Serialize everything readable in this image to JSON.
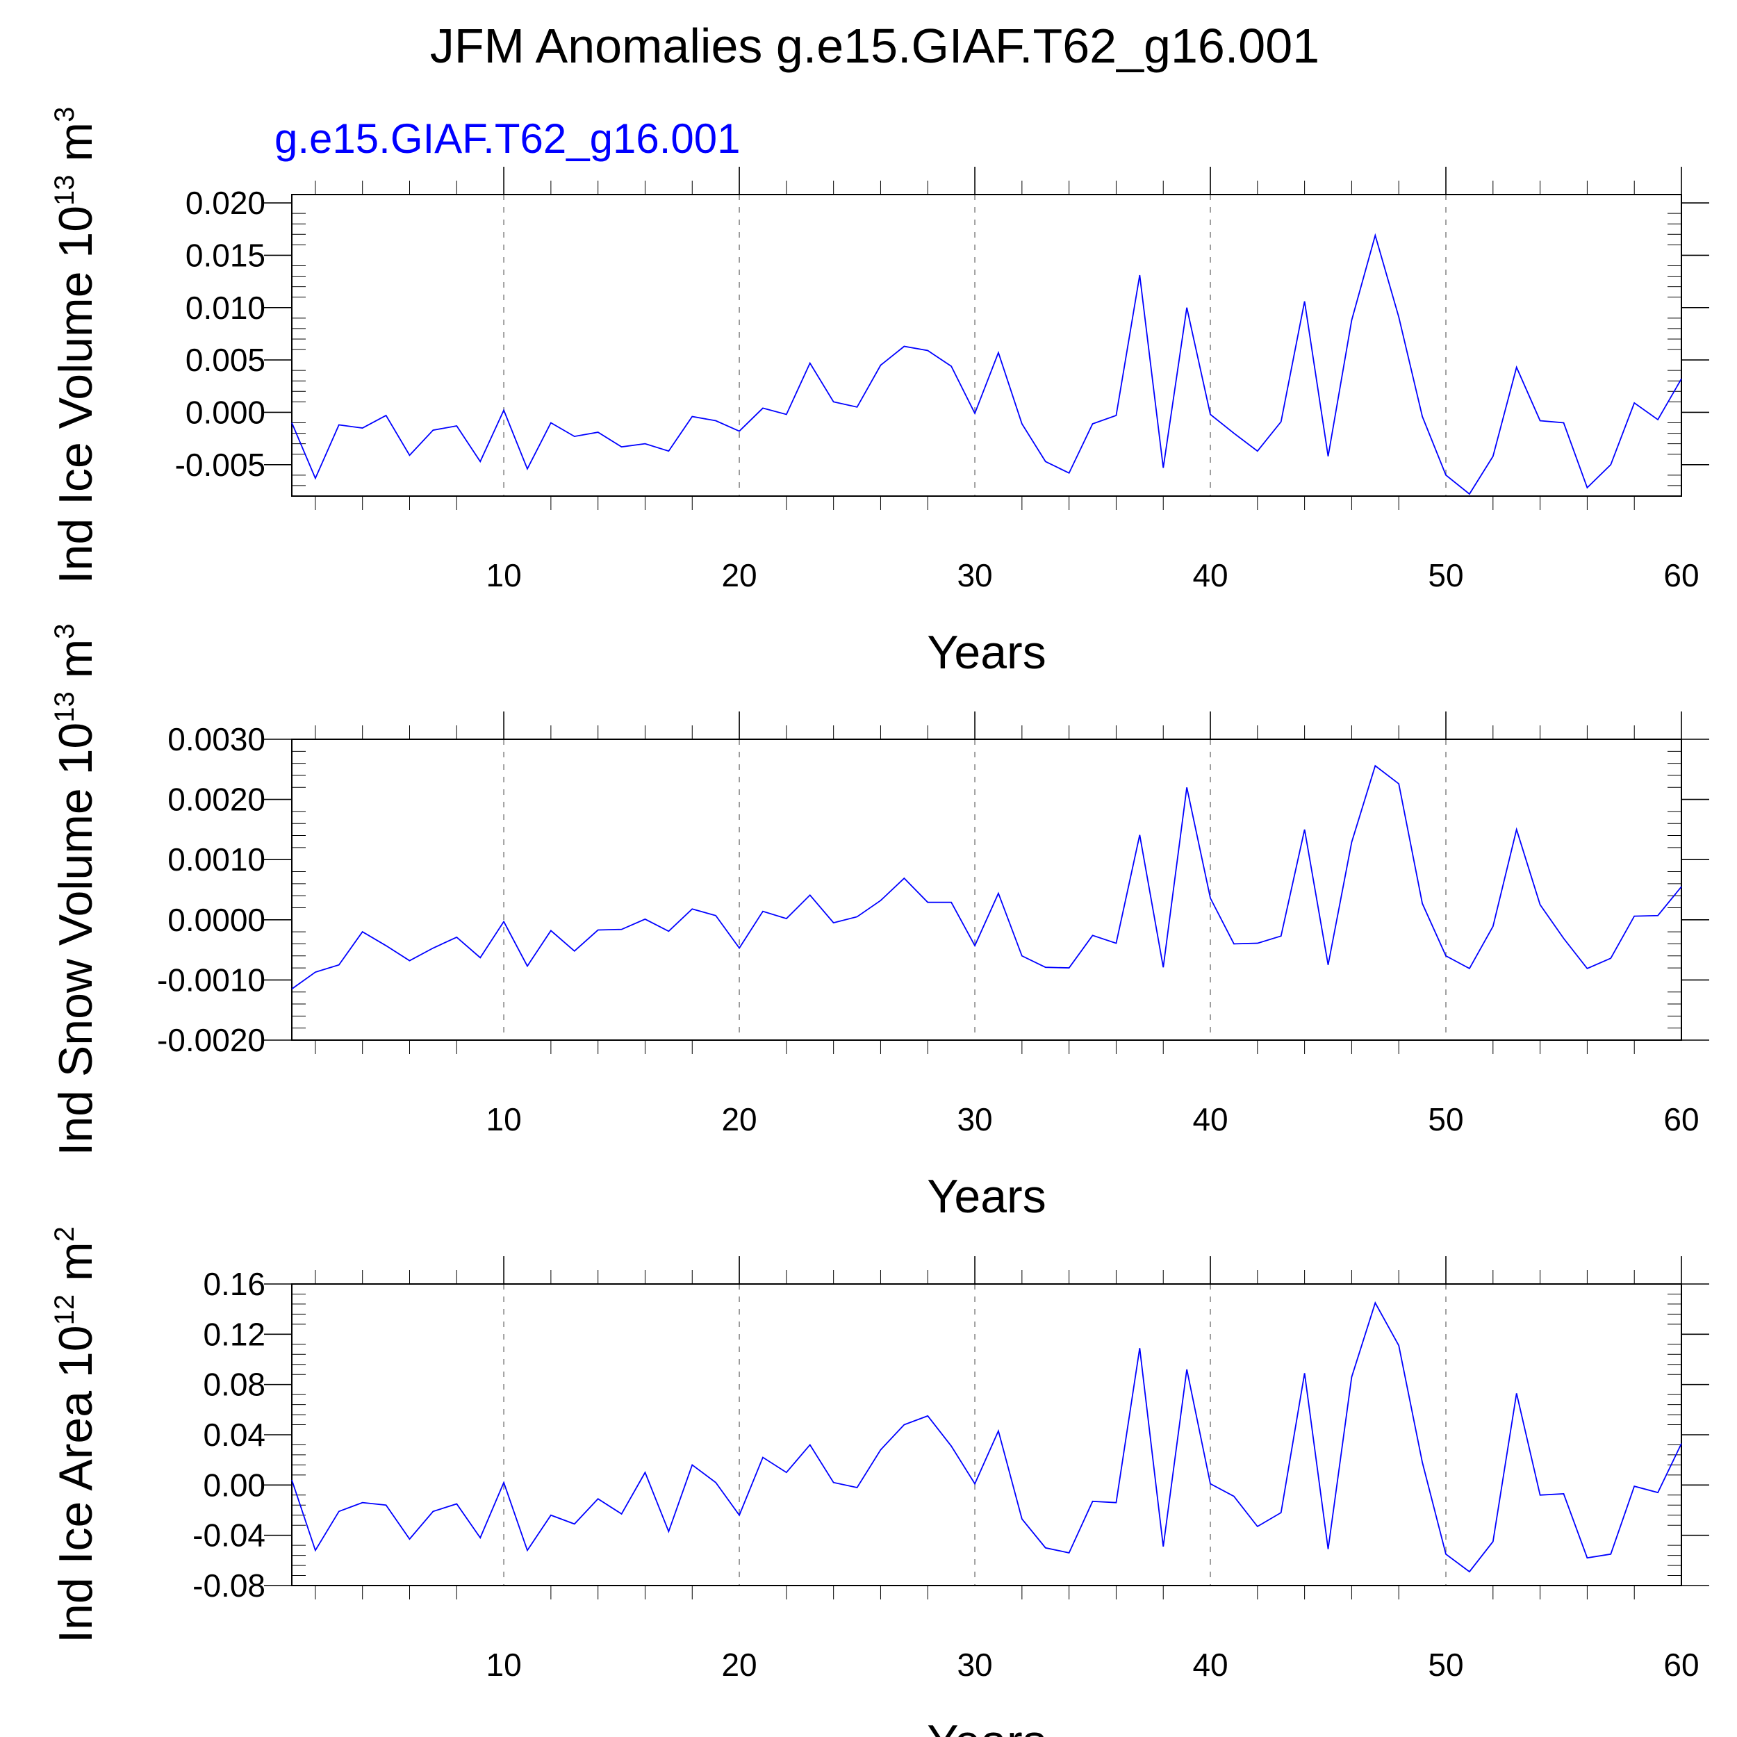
{
  "title": "JFM Anomalies g.e15.GIAF.T62_g16.001",
  "subtitle": "g.e15.GIAF.T62_g16.001",
  "colors": {
    "series": "#0000ff",
    "subtitle": "#0000ff",
    "grid": "#888888"
  },
  "panels": [
    {
      "ylabel_main": "Ind Ice Volume 10",
      "ylabel_exp": "13",
      "ylabel_unit": " m",
      "ylabel_unit_exp": "3"
    },
    {
      "ylabel_main": "Ind Snow Volume 10",
      "ylabel_exp": "13",
      "ylabel_unit": " m",
      "ylabel_unit_exp": "3"
    },
    {
      "ylabel_main": "Ind Ice Area 10",
      "ylabel_exp": "12",
      "ylabel_unit": " m",
      "ylabel_unit_exp": "2"
    }
  ],
  "chart_data": [
    {
      "type": "line",
      "xlabel": "Years",
      "xlim": [
        1,
        60
      ],
      "xticks": [
        10,
        20,
        30,
        40,
        50,
        60
      ],
      "ylim": [
        -0.008,
        0.0208
      ],
      "yticks": [
        -0.005,
        0.0,
        0.005,
        0.01,
        0.015,
        0.02
      ],
      "ytick_labels": [
        "-0.005",
        "0.000",
        "0.005",
        "0.010",
        "0.015",
        "0.020"
      ],
      "grid": "dashed vertical at major x ticks",
      "x": [
        1,
        2,
        3,
        4,
        5,
        6,
        7,
        8,
        9,
        10,
        11,
        12,
        13,
        14,
        15,
        16,
        17,
        18,
        19,
        20,
        21,
        22,
        23,
        24,
        25,
        26,
        27,
        28,
        29,
        30,
        31,
        32,
        33,
        34,
        35,
        36,
        37,
        38,
        39,
        40,
        41,
        42,
        43,
        44,
        45,
        46,
        47,
        48,
        49,
        50,
        51,
        52,
        53,
        54,
        55,
        56,
        57,
        58,
        59,
        60
      ],
      "series": [
        {
          "values": [
            -0.001,
            -0.0063,
            -0.0012,
            -0.0015,
            -0.0003,
            -0.0041,
            -0.0017,
            -0.0013,
            -0.0047,
            0.0002,
            -0.0054,
            -0.001,
            -0.0023,
            -0.0019,
            -0.0033,
            -0.003,
            -0.0037,
            -0.0004,
            -0.0008,
            -0.0018,
            0.0004,
            -0.0002,
            0.0047,
            0.001,
            0.0005,
            0.0045,
            0.0063,
            0.0059,
            0.0044,
            -0.0001,
            0.0057,
            -0.0011,
            -0.0047,
            -0.0058,
            -0.0011,
            -0.0003,
            0.0131,
            -0.0053,
            0.01,
            -0.0002,
            -0.002,
            -0.0037,
            -0.0009,
            0.0106,
            -0.0042,
            0.0088,
            0.0169,
            0.0091,
            -0.0004,
            -0.006,
            -0.0078,
            -0.0042,
            0.0043,
            -0.0008,
            -0.001,
            -0.0072,
            -0.005,
            0.0009,
            -0.0007,
            0.0032
          ]
        }
      ]
    },
    {
      "type": "line",
      "xlabel": "Years",
      "xlim": [
        1,
        60
      ],
      "xticks": [
        10,
        20,
        30,
        40,
        50,
        60
      ],
      "ylim": [
        -0.002,
        0.003
      ],
      "yticks": [
        -0.002,
        -0.001,
        0.0,
        0.001,
        0.002,
        0.003
      ],
      "ytick_labels": [
        "-0.0020",
        "-0.0010",
        "0.0000",
        "0.0010",
        "0.0020",
        "0.0030"
      ],
      "grid": "dashed vertical at major x ticks",
      "x": [
        1,
        2,
        3,
        4,
        5,
        6,
        7,
        8,
        9,
        10,
        11,
        12,
        13,
        14,
        15,
        16,
        17,
        18,
        19,
        20,
        21,
        22,
        23,
        24,
        25,
        26,
        27,
        28,
        29,
        30,
        31,
        32,
        33,
        34,
        35,
        36,
        37,
        38,
        39,
        40,
        41,
        42,
        43,
        44,
        45,
        46,
        47,
        48,
        49,
        50,
        51,
        52,
        53,
        54,
        55,
        56,
        57,
        58,
        59,
        60
      ],
      "series": [
        {
          "values": [
            -0.00115,
            -0.00087,
            -0.00075,
            -0.0002,
            -0.00043,
            -0.00068,
            -0.00047,
            -0.00029,
            -0.00063,
            -3e-05,
            -0.00077,
            -0.00018,
            -0.00052,
            -0.00017,
            -0.00016,
            1e-05,
            -0.00019,
            0.00018,
            7e-05,
            -0.00047,
            0.00014,
            2e-05,
            0.00041,
            -5e-05,
            5e-05,
            0.00032,
            0.00069,
            0.00029,
            0.00029,
            -0.00043,
            0.00044,
            -0.0006,
            -0.00079,
            -0.0008,
            -0.00026,
            -0.00039,
            0.00141,
            -0.00079,
            0.0022,
            0.00036,
            -0.0004,
            -0.00039,
            -0.00027,
            0.0015,
            -0.00075,
            0.00129,
            0.00256,
            0.00226,
            0.00027,
            -0.0006,
            -0.00081,
            -0.00011,
            0.0015,
            0.00025,
            -0.00031,
            -0.00081,
            -0.00064,
            6e-05,
            7e-05,
            0.00055
          ]
        }
      ]
    },
    {
      "type": "line",
      "xlabel": "Years",
      "xlim": [
        1,
        60
      ],
      "xticks": [
        10,
        20,
        30,
        40,
        50,
        60
      ],
      "ylim": [
        -0.08,
        0.16
      ],
      "yticks": [
        -0.08,
        -0.04,
        0.0,
        0.04,
        0.08,
        0.12,
        0.16
      ],
      "ytick_labels": [
        "-0.08",
        "-0.04",
        "0.00",
        "0.04",
        "0.08",
        "0.12",
        "0.16"
      ],
      "grid": "dashed vertical at major x ticks",
      "x": [
        1,
        2,
        3,
        4,
        5,
        6,
        7,
        8,
        9,
        10,
        11,
        12,
        13,
        14,
        15,
        16,
        17,
        18,
        19,
        20,
        21,
        22,
        23,
        24,
        25,
        26,
        27,
        28,
        29,
        30,
        31,
        32,
        33,
        34,
        35,
        36,
        37,
        38,
        39,
        40,
        41,
        42,
        43,
        44,
        45,
        46,
        47,
        48,
        49,
        50,
        51,
        52,
        53,
        54,
        55,
        56,
        57,
        58,
        59,
        60
      ],
      "series": [
        {
          "values": [
            0.004,
            -0.052,
            -0.021,
            -0.014,
            -0.016,
            -0.043,
            -0.021,
            -0.015,
            -0.042,
            0.002,
            -0.052,
            -0.024,
            -0.031,
            -0.011,
            -0.023,
            0.01,
            -0.037,
            0.016,
            0.002,
            -0.024,
            0.022,
            0.01,
            0.032,
            0.002,
            -0.002,
            0.028,
            0.048,
            0.055,
            0.031,
            0.001,
            0.043,
            -0.027,
            -0.05,
            -0.054,
            -0.013,
            -0.014,
            0.109,
            -0.049,
            0.092,
            0.001,
            -0.009,
            -0.033,
            -0.022,
            0.089,
            -0.051,
            0.086,
            0.145,
            0.111,
            0.018,
            -0.055,
            -0.069,
            -0.045,
            0.073,
            -0.008,
            -0.007,
            -0.058,
            -0.055,
            -0.001,
            -0.006,
            0.033
          ]
        }
      ]
    }
  ]
}
